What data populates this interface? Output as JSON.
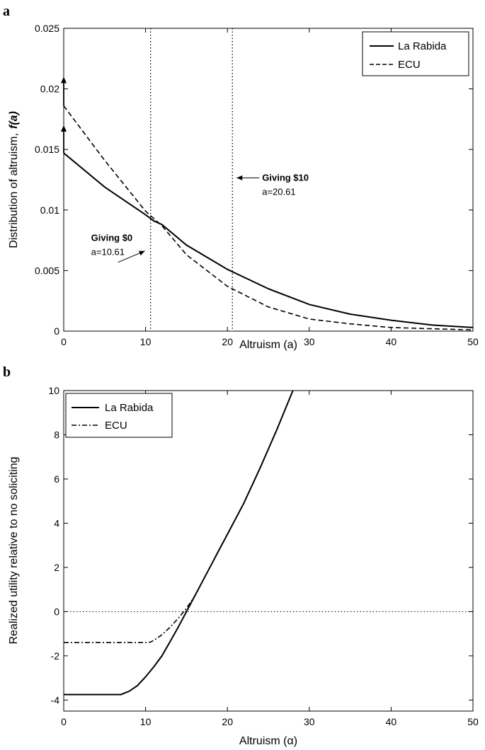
{
  "chart_data": [
    {
      "type": "line",
      "panel_label": "a",
      "xlabel": "Altruism (a)",
      "ylabel": "Distribution of altruism,",
      "ylabel_symbol": "f(a)",
      "xlim": [
        0,
        50
      ],
      "ylim": [
        0,
        0.025
      ],
      "xticks": [
        "0",
        "10",
        "20",
        "30",
        "40",
        "50"
      ],
      "yticks": [
        "0",
        "0.005",
        "0.01",
        "0.015",
        "0.02",
        "0.025"
      ],
      "legend_position": "top-right",
      "series": [
        {
          "name": "La Rabida",
          "style": "solid",
          "points": [
            [
              0,
              0.0147
            ],
            [
              5,
              0.0119
            ],
            [
              10,
              0.0096
            ],
            [
              11,
              0.0091
            ],
            [
              12,
              0.0088
            ],
            [
              15,
              0.0071
            ],
            [
              20,
              0.0051
            ],
            [
              25,
              0.0035
            ],
            [
              30,
              0.0022
            ],
            [
              35,
              0.0014
            ],
            [
              40,
              0.0009
            ],
            [
              45,
              0.0005
            ],
            [
              50,
              0.0003
            ]
          ]
        },
        {
          "name": "ECU",
          "style": "dashed",
          "points": [
            [
              0,
              0.0186
            ],
            [
              5,
              0.0141
            ],
            [
              10,
              0.0099
            ],
            [
              12,
              0.0087
            ],
            [
              15,
              0.0063
            ],
            [
              20,
              0.0037
            ],
            [
              25,
              0.002
            ],
            [
              30,
              0.001
            ],
            [
              35,
              0.0006
            ],
            [
              40,
              0.0003
            ],
            [
              45,
              0.0002
            ],
            [
              50,
              0.0001
            ]
          ]
        }
      ],
      "vlines": [
        10.61,
        20.61
      ],
      "arrows_up": [
        {
          "x": 0,
          "from": 0.0147,
          "to": 0.017
        },
        {
          "x": 0,
          "from": 0.0186,
          "to": 0.021
        }
      ],
      "annotations": [
        {
          "line1": "Giving $10",
          "line2": "a=20.61",
          "x": 20.61,
          "y": 0.0116
        },
        {
          "line1": "Giving $0",
          "line2": "a=10.61",
          "x": 10.61,
          "y": 0.0058
        }
      ]
    },
    {
      "type": "line",
      "panel_label": "b",
      "xlabel": "Altruism (α)",
      "ylabel": "Realized utility relative to no soliciting",
      "xlim": [
        0,
        50
      ],
      "ylim": [
        -4.5,
        10
      ],
      "xticks": [
        "0",
        "10",
        "20",
        "30",
        "40",
        "50"
      ],
      "yticks": [
        "-4",
        "-2",
        "0",
        "2",
        "4",
        "6",
        "8",
        "10"
      ],
      "legend_position": "top-left",
      "hline": 0,
      "series": [
        {
          "name": "La Rabida",
          "style": "solid",
          "points": [
            [
              0,
              -3.75
            ],
            [
              7,
              -3.75
            ],
            [
              8,
              -3.6
            ],
            [
              9,
              -3.35
            ],
            [
              10,
              -2.95
            ],
            [
              11,
              -2.5
            ],
            [
              12,
              -2.0
            ],
            [
              13,
              -1.35
            ],
            [
              14,
              -0.7
            ],
            [
              15,
              0.0
            ],
            [
              16,
              0.7
            ],
            [
              17,
              1.4
            ],
            [
              18,
              2.1
            ],
            [
              19,
              2.8
            ],
            [
              20,
              3.5
            ],
            [
              22,
              4.9
            ],
            [
              24,
              6.5
            ],
            [
              26,
              8.2
            ],
            [
              28,
              10.0
            ]
          ]
        },
        {
          "name": "ECU",
          "style": "dashdot",
          "points": [
            [
              0,
              -1.4
            ],
            [
              10,
              -1.4
            ],
            [
              10.6,
              -1.38
            ],
            [
              11,
              -1.3
            ],
            [
              12,
              -1.05
            ],
            [
              13,
              -0.7
            ],
            [
              14,
              -0.3
            ],
            [
              15,
              0.15
            ],
            [
              16,
              0.7
            ]
          ]
        }
      ]
    }
  ]
}
